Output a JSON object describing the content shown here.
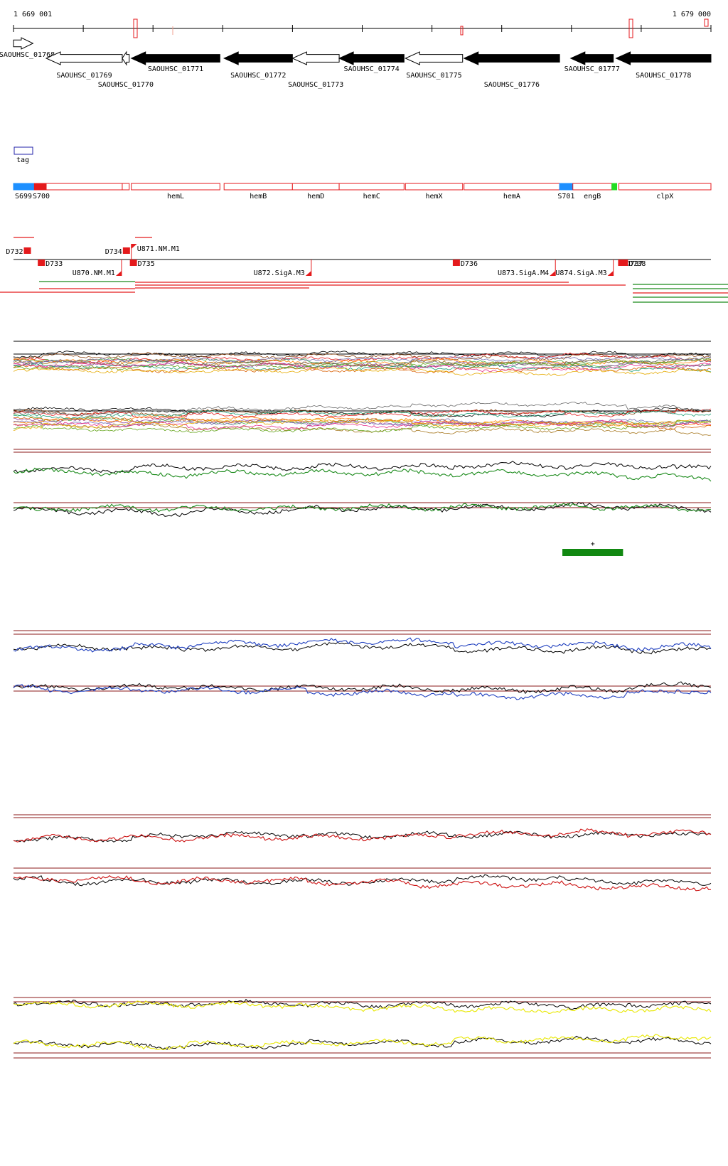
{
  "ruler": {
    "start_label": "1 669 001",
    "end_label": "1 679 000",
    "start_bp": 1669001,
    "end_bp": 1679000
  },
  "colors": {
    "gene_black": "#000000",
    "gene_white": "#ffffff",
    "feature_red": "#e41a1c",
    "feature_blue": "#1e90ff",
    "feature_green": "#22dd22",
    "track_dark_red": "#8b1a1a",
    "track_green": "#1a8a1a",
    "track_blue": "#1f3fbf",
    "track_red": "#cc1111",
    "track_yellow": "#e8e800",
    "plus_bar": "#118811"
  },
  "genes": [
    {
      "name": "SAOUHSC_01768",
      "strand": "+",
      "fill": "white",
      "start_bp": 1669001,
      "end_bp": 1669280
    },
    {
      "name": "SAOUHSC_01769",
      "strand": "-",
      "fill": "white",
      "start_bp": 1669470,
      "end_bp": 1670560
    },
    {
      "name": "SAOUHSC_01770",
      "strand": "-",
      "fill": "white",
      "start_bp": 1670560,
      "end_bp": 1670660
    },
    {
      "name": "SAOUHSC_01771",
      "strand": "-",
      "fill": "black",
      "start_bp": 1670690,
      "end_bp": 1671960
    },
    {
      "name": "SAOUHSC_01772",
      "strand": "-",
      "fill": "black",
      "start_bp": 1672020,
      "end_bp": 1673000
    },
    {
      "name": "SAOUHSC_01773",
      "strand": "-",
      "fill": "white",
      "start_bp": 1673000,
      "end_bp": 1673670
    },
    {
      "name": "SAOUHSC_01774",
      "strand": "-",
      "fill": "black",
      "start_bp": 1673670,
      "end_bp": 1674600
    },
    {
      "name": "SAOUHSC_01775",
      "strand": "-",
      "fill": "white",
      "start_bp": 1674620,
      "end_bp": 1675440
    },
    {
      "name": "SAOUHSC_01776",
      "strand": "-",
      "fill": "black",
      "start_bp": 1675460,
      "end_bp": 1676830
    },
    {
      "name": "SAOUHSC_01777",
      "strand": "-",
      "fill": "black",
      "start_bp": 1676990,
      "end_bp": 1677600
    },
    {
      "name": "SAOUHSC_01778",
      "strand": "-",
      "fill": "black",
      "start_bp": 1677640,
      "end_bp": 1679000
    }
  ],
  "tag_legend": {
    "label": "tag"
  },
  "segments": [
    {
      "label": "S699",
      "type": "blue",
      "start_bp": 1669001,
      "end_bp": 1669300
    },
    {
      "label": "S700",
      "type": "red-filled",
      "start_bp": 1669300,
      "end_bp": 1669470
    },
    {
      "label": "",
      "type": "outline",
      "start_bp": 1669470,
      "end_bp": 1670560
    },
    {
      "label": "",
      "type": "outline",
      "start_bp": 1670560,
      "end_bp": 1670660
    },
    {
      "label": "hemL",
      "type": "outline",
      "start_bp": 1670690,
      "end_bp": 1671960
    },
    {
      "label": "hemB",
      "type": "outline",
      "start_bp": 1672020,
      "end_bp": 1673000
    },
    {
      "label": "hemD",
      "type": "outline",
      "start_bp": 1673000,
      "end_bp": 1673670
    },
    {
      "label": "hemC",
      "type": "outline",
      "start_bp": 1673670,
      "end_bp": 1674600
    },
    {
      "label": "hemX",
      "type": "outline",
      "start_bp": 1674620,
      "end_bp": 1675440
    },
    {
      "label": "hemA",
      "type": "outline",
      "start_bp": 1675460,
      "end_bp": 1676830
    },
    {
      "label": "S701",
      "type": "blue",
      "start_bp": 1676830,
      "end_bp": 1677020
    },
    {
      "label": "engB",
      "type": "outline",
      "start_bp": 1677020,
      "end_bp": 1677580
    },
    {
      "label": "",
      "type": "green",
      "start_bp": 1677580,
      "end_bp": 1677650
    },
    {
      "label": "clpX",
      "type": "outline",
      "start_bp": 1677680,
      "end_bp": 1679000
    }
  ],
  "downstream_features": [
    {
      "label": "D732",
      "row": "upper",
      "bp": 1669200
    },
    {
      "label": "D733",
      "row": "lower",
      "bp": 1669400
    },
    {
      "label": "D734",
      "row": "upper",
      "bp": 1670620
    },
    {
      "label": "D735",
      "row": "lower",
      "bp": 1670720
    },
    {
      "label": "D736",
      "row": "lower",
      "bp": 1675350
    },
    {
      "label": "D737",
      "row": "lower",
      "bp": 1677720
    },
    {
      "label": "D738",
      "row": "lower",
      "bp": 1677760
    }
  ],
  "upstream_features": [
    {
      "label": "U870.NM.M1",
      "row": "lower",
      "bp": 1670550
    },
    {
      "label": "U871.NM.M1",
      "row": "upper",
      "bp": 1670690
    },
    {
      "label": "U872.SigA.M3",
      "row": "lower",
      "bp": 1673270
    },
    {
      "label": "U873.SigA.M4",
      "row": "lower",
      "bp": 1676770
    },
    {
      "label": "U874.SigA.M3",
      "row": "lower",
      "bp": 1677600
    }
  ],
  "plus_marker": {
    "label": "+",
    "start_bp": 1676870,
    "end_bp": 1677740
  }
}
